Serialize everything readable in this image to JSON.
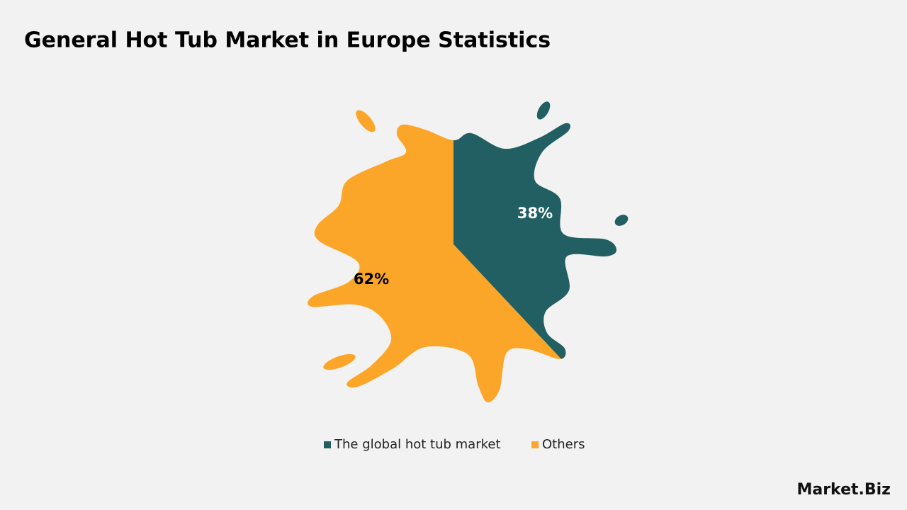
{
  "chart_data": {
    "type": "pie",
    "title": "General Hot Tub Market in Europe Statistics",
    "categories": [
      "The global hot tub market",
      "Others"
    ],
    "values": [
      38,
      62
    ],
    "value_labels": [
      "38%",
      "62%"
    ],
    "colors": [
      "#215f62",
      "#fba628"
    ],
    "legend": "bottom",
    "brand": "Market.Biz"
  }
}
